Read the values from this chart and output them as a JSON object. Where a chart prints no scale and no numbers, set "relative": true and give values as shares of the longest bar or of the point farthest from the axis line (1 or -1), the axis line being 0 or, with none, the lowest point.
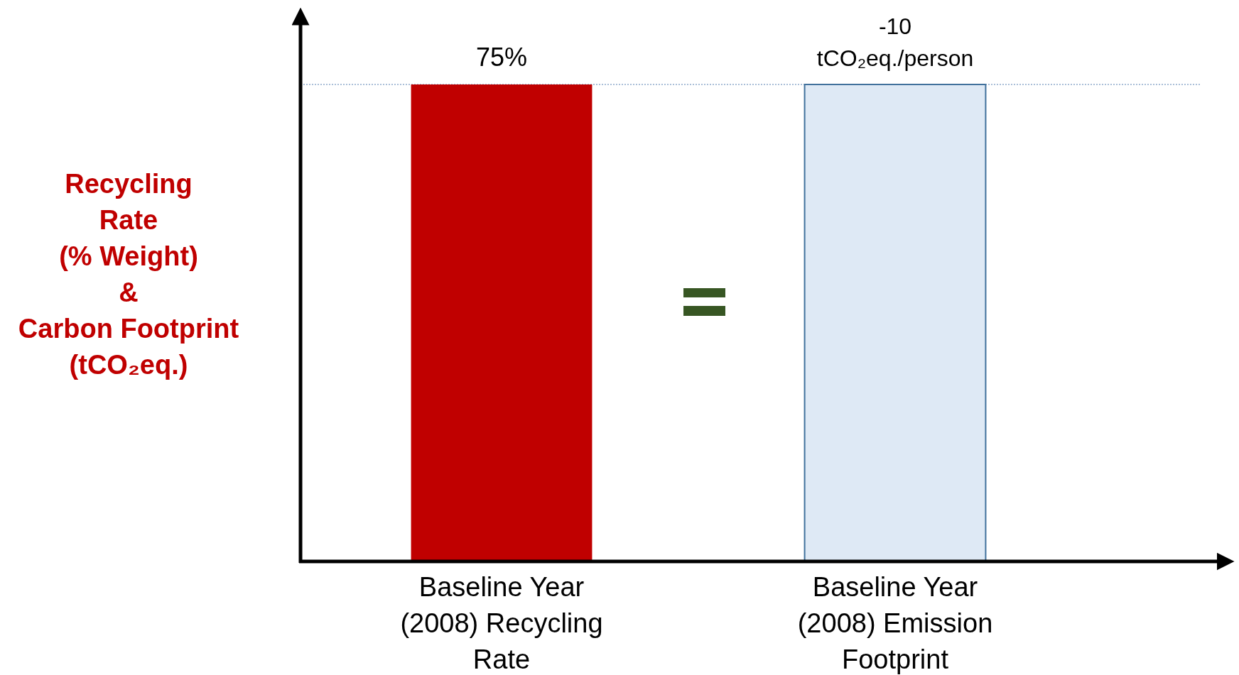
{
  "chart_data": {
    "type": "bar",
    "ylabel": "Recycling\nRate\n(% Weight)\n&\nCarbon Footprint\n(tCO₂eq.)",
    "categories": [
      "Baseline Year\n(2008) Recycling\nRate",
      "Baseline Year\n(2008) Emission\nFootprint"
    ],
    "values": [
      1,
      1
    ],
    "colors": [
      "#c00000",
      "#dee9f5"
    ],
    "relative": true,
    "annotations": [
      {
        "text": "75%",
        "x": "Baseline Year\n(2008) Recycling\nRate",
        "y": 1
      },
      {
        "text": "-10\ntCO₂eq./person",
        "x": "Baseline Year\n(2008) Emission\nFootprint",
        "y": 1
      }
    ],
    "ref_lines": [
      {
        "axis": "y",
        "value": 1,
        "color": "#8eaacb",
        "line_style": "dotted"
      }
    ]
  }
}
